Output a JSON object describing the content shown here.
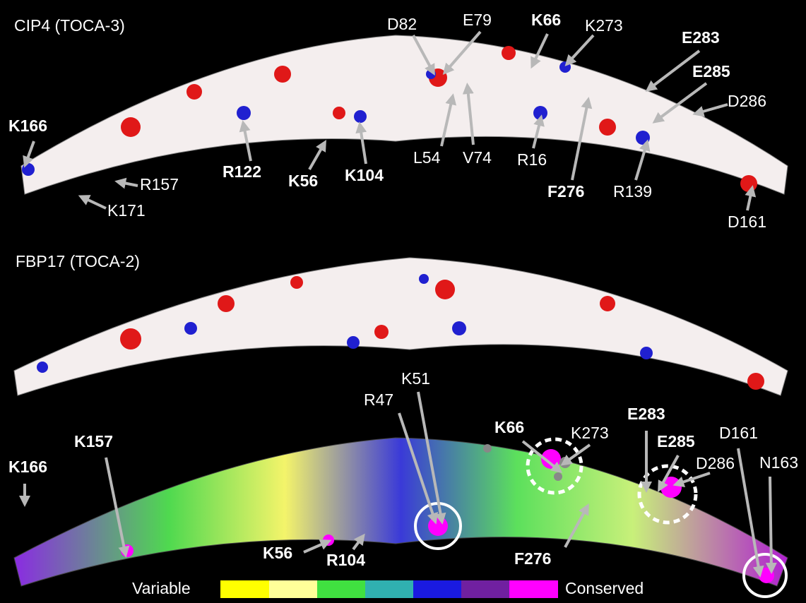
{
  "panels": [
    {
      "title": "CIP4 (TOCA-3)",
      "labels": [
        "D82",
        "E79",
        "K66",
        "K273",
        "E283",
        "E285",
        "D286",
        "K166",
        "R122",
        "K56",
        "K104",
        "L54",
        "V74",
        "R16",
        "F276",
        "R139",
        "R157",
        "K171",
        "D161"
      ]
    },
    {
      "title": "FBP17 (TOCA-2)"
    },
    {
      "labels": [
        "R47",
        "K51",
        "K66",
        "K273",
        "E283",
        "E285",
        "D161",
        "N163",
        "D286",
        "K157",
        "K166",
        "K56",
        "R104",
        "F276"
      ]
    }
  ],
  "legend": {
    "low": "Variable",
    "high": "Conserved"
  }
}
